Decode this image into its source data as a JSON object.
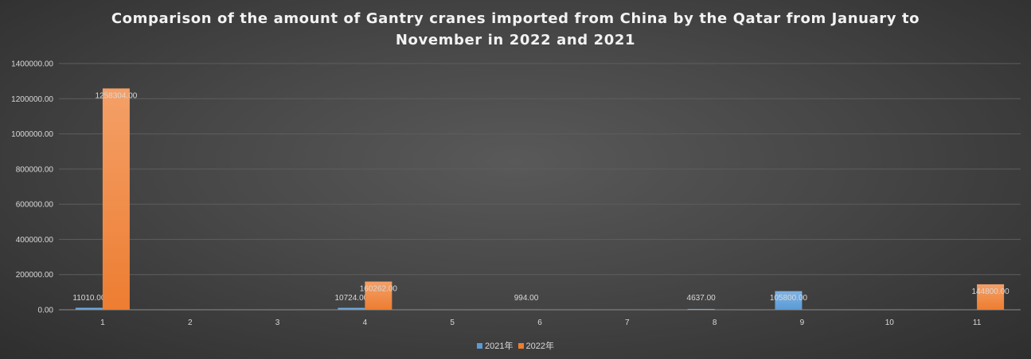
{
  "chart_data": {
    "type": "bar",
    "title_lines": [
      "Comparison of the amount of Gantry cranes imported from China by the Qatar from January to",
      "November in 2022 and 2021"
    ],
    "categories": [
      "1",
      "2",
      "3",
      "4",
      "5",
      "6",
      "7",
      "8",
      "9",
      "10",
      "11"
    ],
    "series": [
      {
        "name": "2021年",
        "color": "#5b9bd5",
        "values": [
          11010,
          0,
          0,
          10724,
          0,
          994,
          0,
          4637,
          105800,
          0,
          0
        ],
        "labels": [
          "11010.00",
          "",
          "",
          "10724.00",
          "",
          "994.00",
          "",
          "4637.00",
          "105800.00",
          "",
          ""
        ]
      },
      {
        "name": "2022年",
        "color": "#ed7d31",
        "values": [
          1258304,
          0,
          0,
          160262,
          0,
          0,
          0,
          0,
          0,
          0,
          144800
        ],
        "labels": [
          "1258304.00",
          "",
          "",
          "160262.00",
          "",
          "",
          "",
          "",
          "",
          "",
          "144800.00"
        ]
      }
    ],
    "ylim": [
      0,
      1400000
    ],
    "yticks": [
      "0.00",
      "200000.00",
      "400000.00",
      "600000.00",
      "800000.00",
      "1000000.00",
      "1200000.00",
      "1400000.00"
    ],
    "grid": true,
    "legend_position": "bottom"
  }
}
